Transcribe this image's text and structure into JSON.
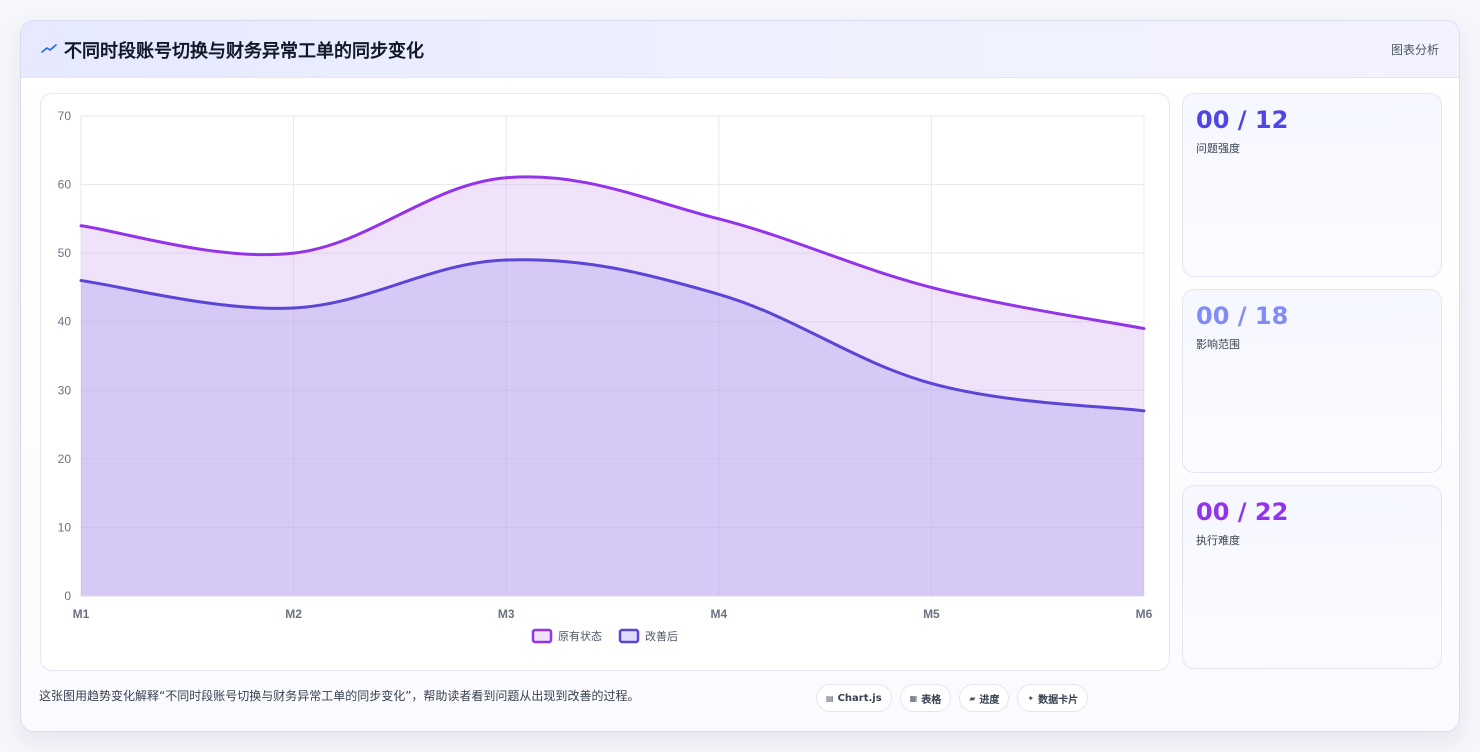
{
  "header": {
    "title": "不同时段账号切换与财务异常工单的同步变化",
    "title_icon": "trend-line-icon",
    "right_label": "图表分析"
  },
  "stats": [
    {
      "value": "00 / 12",
      "label": "问题强度",
      "color": "#4f46e5"
    },
    {
      "value": "00 / 18",
      "label": "影响范围",
      "color": "#818cf8"
    },
    {
      "value": "00 / 22",
      "label": "执行难度",
      "color": "#9333ea"
    }
  ],
  "caption": "这张图用趋势变化解释“不同时段账号切换与财务异常工单的同步变化”，帮助读者看到问题从出现到改善的过程。",
  "tags": [
    {
      "icon": "chart-icon",
      "glyph": "▤",
      "label": "Chart.js"
    },
    {
      "icon": "table-icon",
      "glyph": "▦",
      "label": "表格"
    },
    {
      "icon": "progress-icon",
      "glyph": "▰",
      "label": "进度"
    },
    {
      "icon": "sparkle-icon",
      "glyph": "✦",
      "label": "数据卡片"
    }
  ],
  "chart_data": {
    "type": "area",
    "categories": [
      "M1",
      "M2",
      "M3",
      "M4",
      "M5",
      "M6"
    ],
    "ylim": [
      0,
      70
    ],
    "yticks": [
      0,
      10,
      20,
      30,
      40,
      50,
      60,
      70
    ],
    "grid": true,
    "legend_position": "bottom",
    "series": [
      {
        "name": "原有状态",
        "values": [
          54,
          50,
          61,
          55,
          45,
          39
        ],
        "color": "#9333ea",
        "fill": "rgba(201,160,236,0.30)"
      },
      {
        "name": "改善后",
        "values": [
          46,
          42,
          49,
          44,
          31,
          27
        ],
        "color": "#5b45d6",
        "fill": "rgba(180,165,240,0.40)"
      }
    ]
  }
}
